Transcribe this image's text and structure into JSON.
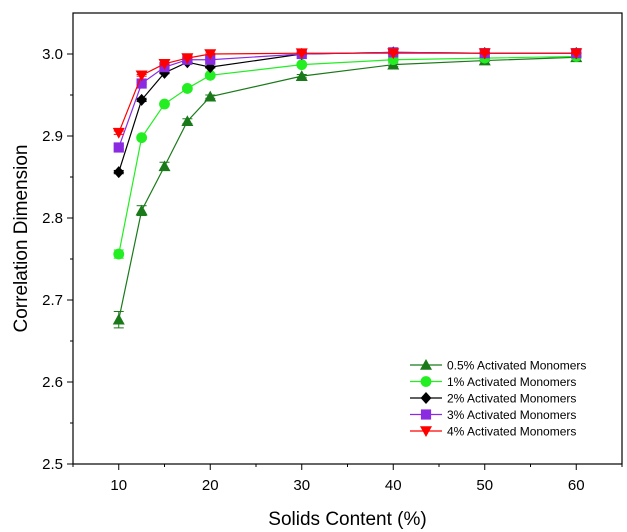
{
  "chart_data": {
    "type": "line",
    "title": "",
    "xlabel": "Solids Content (%)",
    "ylabel": "Correlation Dimension",
    "xlim": [
      5,
      65
    ],
    "ylim": [
      2.5,
      3.05
    ],
    "xticks": [
      10,
      20,
      30,
      40,
      50,
      60
    ],
    "yticks": [
      2.5,
      2.6,
      2.7,
      2.8,
      2.9,
      3.0
    ],
    "ytick_labels": [
      "2.5",
      "2.6",
      "2.7",
      "2.8",
      "2.9",
      "3.0"
    ],
    "grid": false,
    "legend_position": "bottom-right",
    "x": [
      10,
      12.5,
      15,
      17.5,
      20,
      30,
      40,
      50,
      60
    ],
    "series": [
      {
        "name": "0.5% Activated Monomers",
        "color": "#1a7a1a",
        "marker": "triangle-up",
        "values": [
          2.676,
          2.809,
          2.863,
          2.918,
          2.948,
          2.973,
          2.987,
          2.992,
          2.996
        ],
        "errors": [
          0.01,
          0.006,
          0.005,
          0.003,
          0.002,
          0.002,
          0.002,
          0.001,
          0.001
        ]
      },
      {
        "name": "1% Activated Monomers",
        "color": "#22ee22",
        "marker": "circle",
        "values": [
          2.756,
          2.898,
          2.939,
          2.958,
          2.974,
          2.987,
          2.993,
          2.995,
          2.997
        ],
        "errors": [
          0.005,
          0.002,
          0.002,
          0.002,
          0.002,
          0.001,
          0.001,
          0.001,
          0.001
        ]
      },
      {
        "name": "2% Activated Monomers",
        "color": "#000000",
        "marker": "diamond",
        "values": [
          2.856,
          2.944,
          2.977,
          2.99,
          2.984,
          3.0,
          3.002,
          3.001,
          3.001
        ],
        "errors": [
          0.002,
          0.002,
          0.001,
          0.001,
          0.001,
          0.001,
          0.001,
          0.001,
          0.001
        ]
      },
      {
        "name": "3% Activated Monomers",
        "color": "#8a2be2",
        "marker": "square",
        "values": [
          2.886,
          2.964,
          2.984,
          2.993,
          2.993,
          3.0,
          3.002,
          3.001,
          3.001
        ],
        "errors": [
          0.002,
          0.001,
          0.001,
          0.001,
          0.001,
          0.001,
          0.001,
          0.001,
          0.001
        ]
      },
      {
        "name": "4% Activated Monomers",
        "color": "#ff0000",
        "marker": "triangle-down",
        "values": [
          2.904,
          2.974,
          2.988,
          2.995,
          3.0,
          3.001,
          3.001,
          3.001,
          3.001
        ],
        "errors": [
          0.002,
          0.001,
          0.001,
          0.001,
          0.001,
          0.001,
          0.001,
          0.001,
          0.001
        ]
      }
    ]
  }
}
